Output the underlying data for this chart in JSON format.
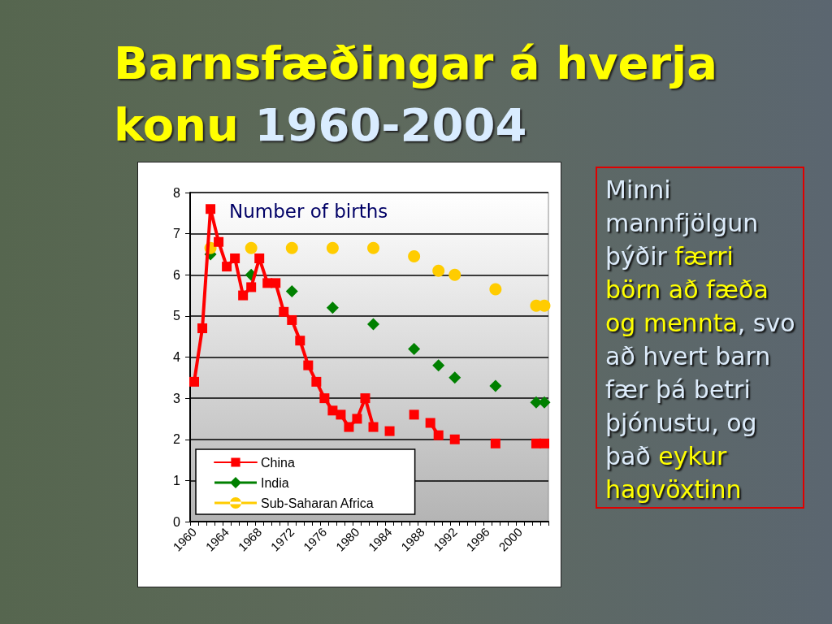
{
  "chart_data": {
    "type": "line",
    "title": "Barnsfæðingar á hverja konu 1960-2004",
    "ylabel": "Number of births",
    "annotations": [
      "Minni mannfjölgun þýðir færri börn að fæða og mennta, svo að hvert barn fær þá betri þjónustu, og það eykur hagvöxtinn"
    ],
    "categories": [
      "1960",
      null,
      null,
      null,
      "1964",
      null,
      null,
      null,
      "1968",
      null,
      null,
      null,
      "1972",
      null,
      null,
      null,
      "1976",
      null,
      null,
      null,
      "1980",
      null,
      null,
      null,
      "1984",
      null,
      null,
      null,
      "1988",
      null,
      null,
      null,
      "1992",
      null,
      null,
      null,
      "1996",
      null,
      null,
      null,
      "2000",
      null,
      null,
      null
    ],
    "series": [
      {
        "name": "China",
        "color": "#ff0000",
        "marker": "square",
        "values": [
          3.4,
          4.7,
          7.6,
          6.8,
          6.2,
          6.4,
          5.5,
          5.7,
          6.4,
          5.8,
          5.8,
          5.1,
          4.9,
          4.4,
          3.8,
          3.4,
          3.0,
          2.7,
          2.6,
          2.3,
          2.5,
          3.0,
          2.3,
          null,
          2.2,
          null,
          null,
          2.6,
          null,
          2.4,
          2.1,
          null,
          2.0,
          null,
          null,
          null,
          null,
          1.9,
          null,
          null,
          null,
          null,
          1.9,
          1.9
        ]
      },
      {
        "name": "India",
        "type": "scatter",
        "color": "#008000",
        "marker": "diamond",
        "values": [
          null,
          null,
          6.5,
          null,
          null,
          null,
          null,
          6.0,
          null,
          null,
          null,
          null,
          5.6,
          null,
          null,
          null,
          null,
          5.2,
          null,
          null,
          null,
          null,
          4.8,
          null,
          null,
          null,
          null,
          4.2,
          null,
          null,
          3.8,
          null,
          3.5,
          null,
          null,
          null,
          null,
          3.3,
          null,
          null,
          null,
          null,
          2.9,
          2.9
        ]
      },
      {
        "name": "Sub-Saharan Africa",
        "type": "scatter",
        "color": "#ffcc00",
        "marker": "circle",
        "values": [
          null,
          null,
          6.65,
          null,
          null,
          null,
          null,
          6.65,
          null,
          null,
          null,
          null,
          6.65,
          null,
          null,
          null,
          null,
          6.65,
          null,
          null,
          null,
          null,
          6.65,
          null,
          null,
          null,
          null,
          6.45,
          null,
          null,
          6.1,
          null,
          6.0,
          null,
          null,
          null,
          null,
          5.65,
          null,
          null,
          null,
          null,
          5.25,
          5.25
        ]
      }
    ],
    "ylim": [
      0,
      8
    ],
    "yticks": [
      0,
      1,
      2,
      3,
      4,
      5,
      6,
      7,
      8
    ],
    "grid": "y",
    "legend": "bottom left",
    "line_style": "solid"
  }
}
